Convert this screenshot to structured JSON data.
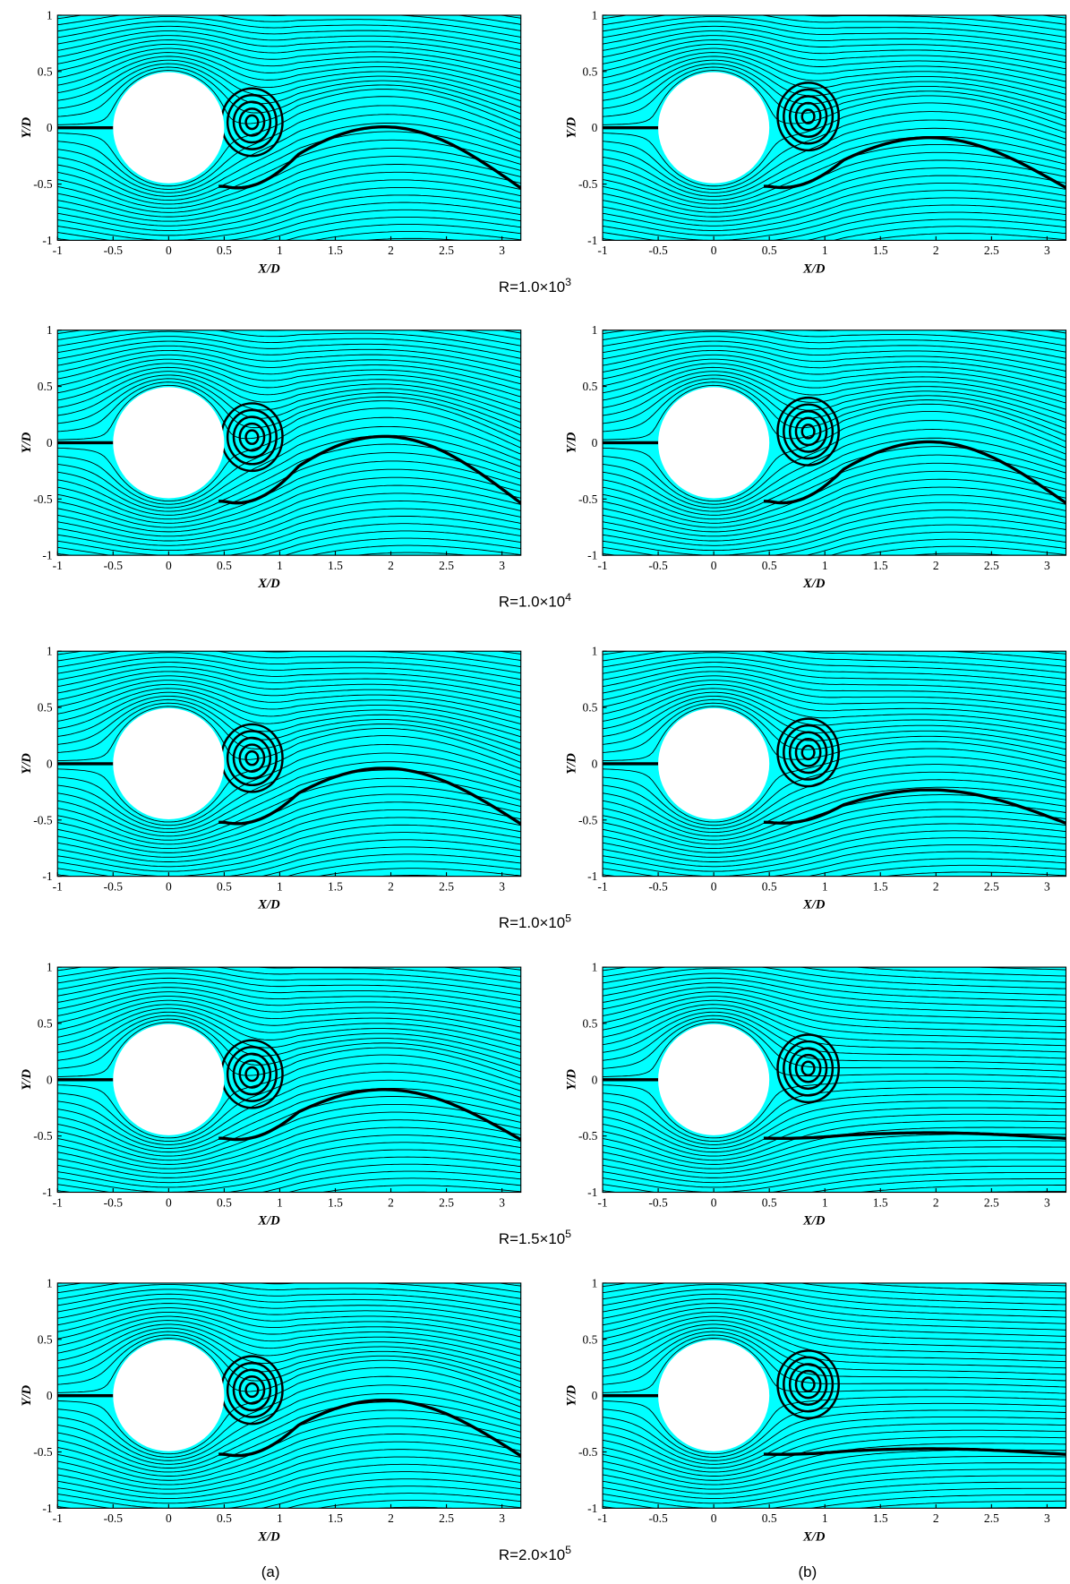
{
  "axes": {
    "xlabel": "X/D",
    "ylabel": "Y/D",
    "xlim": [
      -1,
      3.17
    ],
    "ylim": [
      -1,
      1
    ],
    "xticks": [
      -1,
      -0.5,
      0,
      0.5,
      1,
      1.5,
      2,
      2.5,
      3
    ],
    "yticks": [
      -1,
      -0.5,
      0,
      0.5,
      1
    ]
  },
  "rows": [
    {
      "label": "R=1.0×10",
      "exponent": "3"
    },
    {
      "label": "R=1.0×10",
      "exponent": "4"
    },
    {
      "label": "R=1.0×10",
      "exponent": "5"
    },
    {
      "label": "R=1.5×10",
      "exponent": "5"
    },
    {
      "label": "R=2.0×10",
      "exponent": "5"
    }
  ],
  "panel_labels": [
    "(a)",
    "(b)"
  ]
}
